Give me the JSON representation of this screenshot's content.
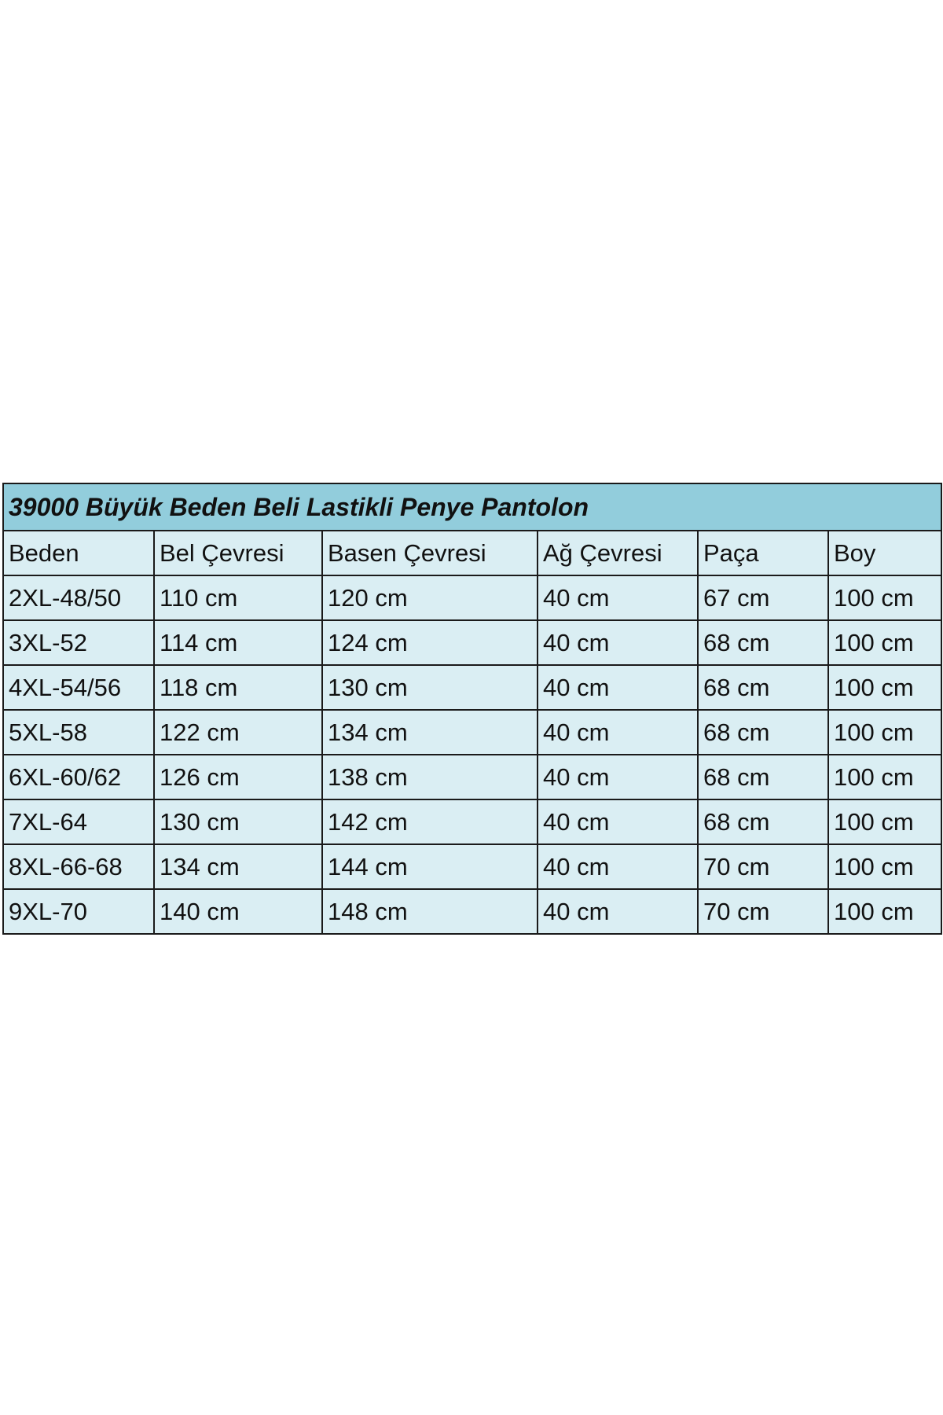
{
  "title": "39000 Büyük Beden Beli Lastikli Penye Pantolon",
  "table": {
    "header": [
      "Beden",
      "Bel Çevresi",
      "Basen Çevresi",
      "Ağ Çevresi",
      "Paça",
      "Boy"
    ],
    "rows": [
      [
        "2XL-48/50",
        "110 cm",
        "120 cm",
        "40 cm",
        "67 cm",
        "100 cm"
      ],
      [
        "3XL-52",
        "114 cm",
        "124 cm",
        "40 cm",
        "68 cm",
        "100 cm"
      ],
      [
        "4XL-54/56",
        "118 cm",
        "130 cm",
        "40 cm",
        "68 cm",
        "100 cm"
      ],
      [
        "5XL-58",
        "122 cm",
        "134 cm",
        "40 cm",
        "68 cm",
        "100 cm"
      ],
      [
        "6XL-60/62",
        "126 cm",
        "138 cm",
        "40 cm",
        "68 cm",
        "100 cm"
      ],
      [
        "7XL-64",
        "130 cm",
        "142 cm",
        "40 cm",
        "68 cm",
        "100 cm"
      ],
      [
        "8XL-66-68",
        "134 cm",
        "144 cm",
        "40 cm",
        "70 cm",
        "100 cm"
      ],
      [
        "9XL-70",
        "140 cm",
        "148 cm",
        "40 cm",
        "70 cm",
        "100 cm"
      ]
    ]
  }
}
